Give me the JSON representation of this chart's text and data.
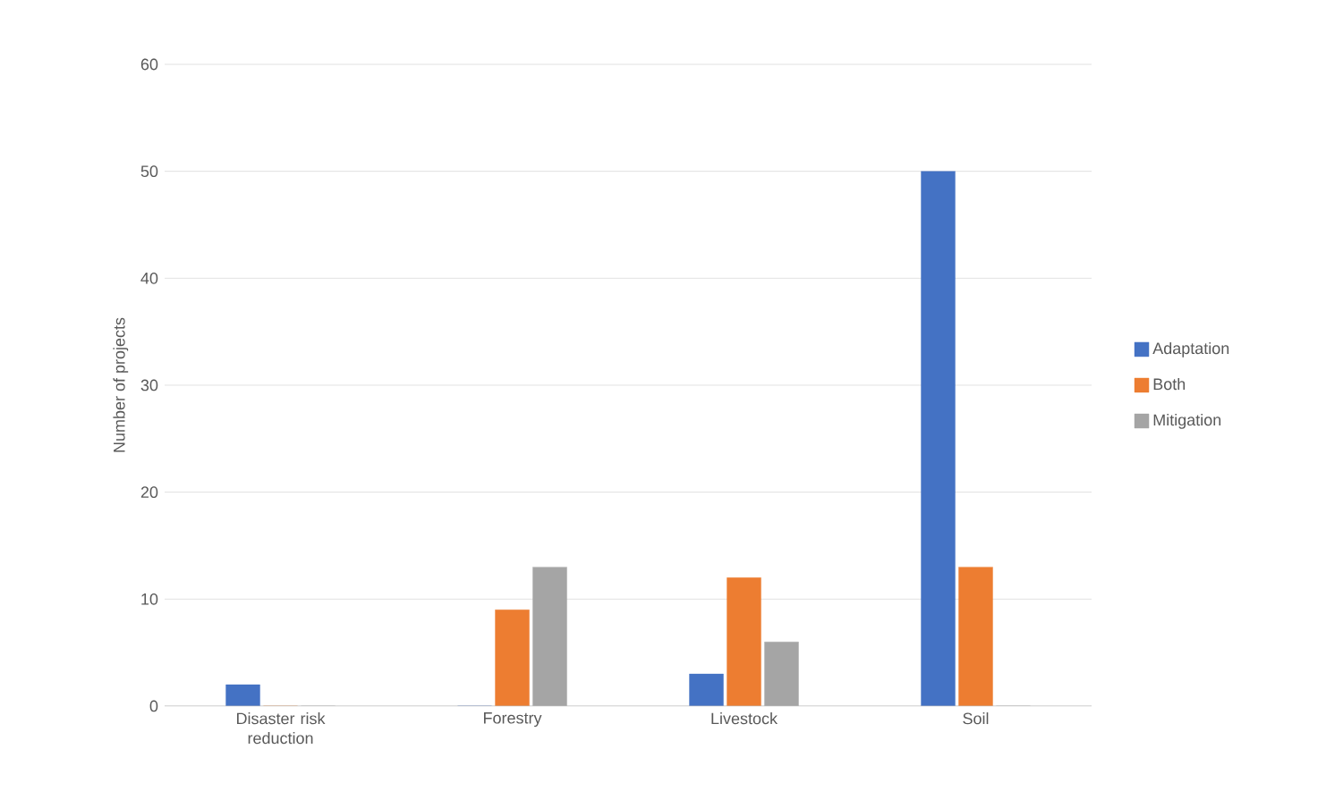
{
  "chart_data": {
    "type": "bar",
    "ylabel": "Number of projects",
    "categories": [
      "Disaster risk reduction",
      "Forestry",
      "Livestock",
      "Soil"
    ],
    "series": [
      {
        "name": "Adaptation",
        "color": "#4472c4",
        "values": [
          2,
          0,
          3,
          50
        ]
      },
      {
        "name": "Both",
        "color": "#ed7d31",
        "values": [
          0,
          9,
          12,
          13
        ]
      },
      {
        "name": "Mitigation",
        "color": "#a5a5a5",
        "values": [
          0,
          13,
          6,
          0
        ]
      }
    ],
    "ylim": [
      0,
      60
    ],
    "yticks": [
      0,
      10,
      20,
      30,
      40,
      50,
      60
    ],
    "grid": "y",
    "legend": "right"
  }
}
